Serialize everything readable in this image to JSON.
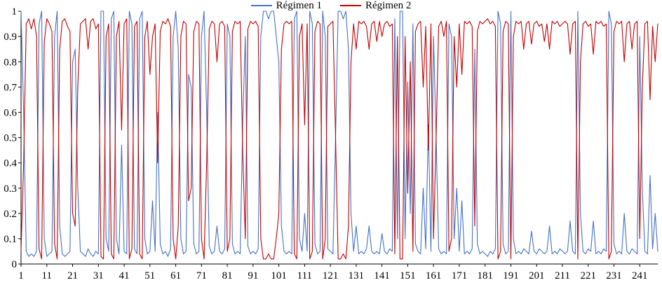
{
  "chart_data": {
    "type": "line",
    "title": "",
    "xlabel": "",
    "ylabel": "",
    "xlim": [
      1,
      248
    ],
    "ylim": [
      0,
      1
    ],
    "grid": false,
    "legend_position": "top-center",
    "x_ticks": [
      1,
      11,
      21,
      31,
      41,
      51,
      61,
      71,
      81,
      91,
      101,
      111,
      121,
      131,
      141,
      151,
      161,
      171,
      181,
      191,
      201,
      211,
      221,
      231,
      241
    ],
    "y_ticks": [
      "1",
      "0.9",
      "0.8",
      "0.7",
      "0.6",
      "0.5",
      "0.4",
      "0.3",
      "0.2",
      "0.1",
      "0"
    ],
    "x_description": "observation index 1..248 (x = array index + 1)",
    "series": [
      {
        "name": "Régimen 1",
        "color": "#4472c4",
        "values": [
          1,
          0.6,
          0.05,
          0.03,
          0.04,
          0.03,
          0.05,
          0.95,
          1,
          0.1,
          0.03,
          0.04,
          0.05,
          0.9,
          1,
          0.15,
          0.04,
          0.03,
          0.04,
          0.05,
          0.8,
          0.85,
          0.3,
          0.05,
          0.04,
          0.03,
          0.06,
          0.04,
          0.03,
          0.05,
          0.04,
          1,
          1,
          0.1,
          0.05,
          0.97,
          1,
          0.1,
          0.04,
          0.47,
          0.05,
          0.04,
          1,
          0.95,
          0.06,
          0.04,
          0.97,
          1,
          0.1,
          0.04,
          0.05,
          0.25,
          0.05,
          0.6,
          0.08,
          0.04,
          0.05,
          0.03,
          0.06,
          0.9,
          1,
          0.85,
          0.1,
          0.04,
          0.05,
          0.75,
          0.7,
          0.08,
          0.04,
          0.05,
          0.9,
          1,
          0.6,
          0.07,
          0.04,
          0.05,
          0.15,
          0.05,
          0.04,
          0.06,
          0.95,
          0.9,
          0.08,
          0.04,
          0.05,
          0.04,
          0.55,
          0.9,
          0.07,
          0.04,
          0.05,
          0.04,
          0.06,
          0.9,
          1,
          1,
          0.97,
          1,
          1,
          0.9,
          0.8,
          0.15,
          0.05,
          0.04,
          0.05,
          0.04,
          0.97,
          1,
          0.1,
          0.05,
          0.2,
          0.05,
          1,
          0.95,
          0.08,
          0.04,
          0.05,
          1,
          0.9,
          0.06,
          0.05,
          0.04,
          0.5,
          1,
          1,
          0.97,
          1,
          0.85,
          0.2,
          0.05,
          0.15,
          0.04,
          0.05,
          0.04,
          0.06,
          0.15,
          0.05,
          0.04,
          0.05,
          0.04,
          0.12,
          0.05,
          0.04,
          0.06,
          0.05,
          0.97,
          0.1,
          1,
          1,
          0.1,
          0.72,
          0.2,
          0.95,
          0.08,
          0.05,
          0.04,
          0.3,
          0.06,
          0.55,
          0.05,
          0.9,
          0.5,
          0.06,
          0.04,
          0.05,
          0.04,
          0.95,
          0.9,
          0.1,
          0.3,
          0.05,
          0.25,
          0.04,
          0.05,
          0.04,
          0.06,
          0.85,
          0.08,
          0.04,
          0.05,
          0.04,
          0.03,
          0.05,
          0.04,
          0.06,
          1,
          0.95,
          0.08,
          0.04,
          0.05,
          1,
          0.1,
          0.04,
          0.05,
          0.04,
          0.06,
          0.05,
          0.04,
          0.13,
          0.05,
          0.04,
          0.06,
          0.05,
          0.04,
          0.05,
          0.15,
          0.04,
          0.05,
          0.04,
          0.06,
          0.05,
          0.04,
          0.05,
          0.17,
          0.05,
          0.04,
          1,
          0.2,
          0.05,
          0.04,
          0.06,
          0.05,
          0.17,
          0.04,
          0.05,
          0.04,
          0.06,
          0.05,
          1,
          0.95,
          0.08,
          0.04,
          0.05,
          0.04,
          0.2,
          0.05,
          0.04,
          0.06,
          0.05,
          0.04,
          0.9,
          0.3,
          0.05,
          0.04,
          0.35,
          0.06,
          0.2,
          0.05
        ]
      },
      {
        "name": "Régimen 2",
        "color": "#c00000",
        "values": [
          0.05,
          0.4,
          0.95,
          0.97,
          0.93,
          0.97,
          0.9,
          0.06,
          0.02,
          0.88,
          0.97,
          0.95,
          0.92,
          0.08,
          0.02,
          0.85,
          0.96,
          0.97,
          0.94,
          0.92,
          0.2,
          0.15,
          0.7,
          0.95,
          0.96,
          0.97,
          0.85,
          0.96,
          0.97,
          0.93,
          0.95,
          0.03,
          0.02,
          0.9,
          0.95,
          0.04,
          0.02,
          0.9,
          0.96,
          0.53,
          0.95,
          0.97,
          0.02,
          0.06,
          0.94,
          0.96,
          0.04,
          0.02,
          0.9,
          0.96,
          0.75,
          0.9,
          0.95,
          0.4,
          0.92,
          0.96,
          0.95,
          0.97,
          0.94,
          0.1,
          0.02,
          0.15,
          0.9,
          0.96,
          0.95,
          0.25,
          0.3,
          0.92,
          0.96,
          0.95,
          0.1,
          0.02,
          0.4,
          0.93,
          0.96,
          0.95,
          0.8,
          0.95,
          0.96,
          0.94,
          0.05,
          0.1,
          0.92,
          0.96,
          0.95,
          0.96,
          0.45,
          0.1,
          0.93,
          0.96,
          0.95,
          0.96,
          0.94,
          0.1,
          0.02,
          0.02,
          0.04,
          0.02,
          0.02,
          0.1,
          0.2,
          0.85,
          0.95,
          0.96,
          0.95,
          0.96,
          0.04,
          0.02,
          0.9,
          0.95,
          0.55,
          0.95,
          0.02,
          0.05,
          0.92,
          0.96,
          0.95,
          0.02,
          0.1,
          0.94,
          0.95,
          0.96,
          0.5,
          0.02,
          0.02,
          0.04,
          0.02,
          0.15,
          0.8,
          0.95,
          0.85,
          0.96,
          0.95,
          0.96,
          0.94,
          0.85,
          0.95,
          0.96,
          0.88,
          0.96,
          0.9,
          0.95,
          0.96,
          0.94,
          0.95,
          0.04,
          0.9,
          0.02,
          0.02,
          0.9,
          0.28,
          0.8,
          0.05,
          0.92,
          0.95,
          0.96,
          0.7,
          0.94,
          0.45,
          0.95,
          0.1,
          0.5,
          0.94,
          0.96,
          0.9,
          0.96,
          0.05,
          0.1,
          0.9,
          0.7,
          0.95,
          0.75,
          0.96,
          0.95,
          0.96,
          0.94,
          0.15,
          0.92,
          0.96,
          0.95,
          0.96,
          0.97,
          0.95,
          0.96,
          0.94,
          0.02,
          0.05,
          0.92,
          0.96,
          0.95,
          0.02,
          0.9,
          0.96,
          0.95,
          0.96,
          0.85,
          0.95,
          0.96,
          0.87,
          0.95,
          0.96,
          0.94,
          0.95,
          0.88,
          0.95,
          0.85,
          0.96,
          0.95,
          0.96,
          0.94,
          0.95,
          0.96,
          0.95,
          0.83,
          0.95,
          0.96,
          0.02,
          0.8,
          0.95,
          0.96,
          0.94,
          0.95,
          0.83,
          0.96,
          0.95,
          0.96,
          0.94,
          0.95,
          0.02,
          0.05,
          0.92,
          0.96,
          0.95,
          0.96,
          0.8,
          0.95,
          0.96,
          0.85,
          0.95,
          0.96,
          0.1,
          0.7,
          0.95,
          0.96,
          0.65,
          0.94,
          0.8,
          0.95
        ]
      }
    ]
  },
  "legend": {
    "items": [
      {
        "label": "Régimen 1",
        "color": "#4472c4"
      },
      {
        "label": "Régimen 2",
        "color": "#c00000"
      }
    ]
  },
  "axes": {
    "axis_color": "#000000",
    "tick_label_color": "#000000",
    "tick_label_size": 15
  }
}
